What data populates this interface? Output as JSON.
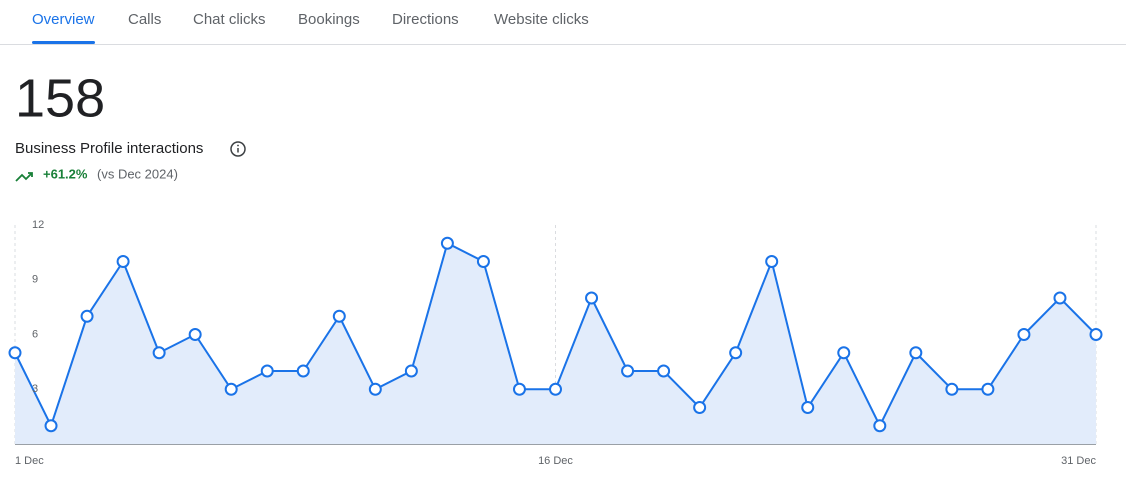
{
  "tabs": [
    "Overview",
    "Calls",
    "Chat clicks",
    "Bookings",
    "Directions",
    "Website clicks"
  ],
  "summary": {
    "total": 158,
    "label": "Business Profile interactions",
    "change": "+61.2%",
    "comparison": "(vs Dec 2024)"
  },
  "chart_data": {
    "type": "line",
    "categories": [
      "1 Dec",
      null,
      null,
      null,
      null,
      null,
      null,
      null,
      null,
      null,
      null,
      null,
      null,
      null,
      null,
      "16 Dec",
      null,
      null,
      null,
      null,
      null,
      null,
      null,
      null,
      null,
      null,
      null,
      null,
      null,
      null,
      "31 Dec"
    ],
    "series": [
      {
        "color": "#1a73e8",
        "values": [
          5,
          1,
          7,
          10,
          5,
          6,
          3,
          4,
          4,
          7,
          3,
          4,
          11,
          10,
          3,
          3,
          8,
          4,
          4,
          2,
          5,
          10,
          2,
          5,
          1,
          5,
          3,
          3,
          6,
          8,
          6
        ]
      }
    ],
    "ylim": [
      0,
      12
    ],
    "yticks": [
      3,
      6,
      9,
      12
    ]
  }
}
